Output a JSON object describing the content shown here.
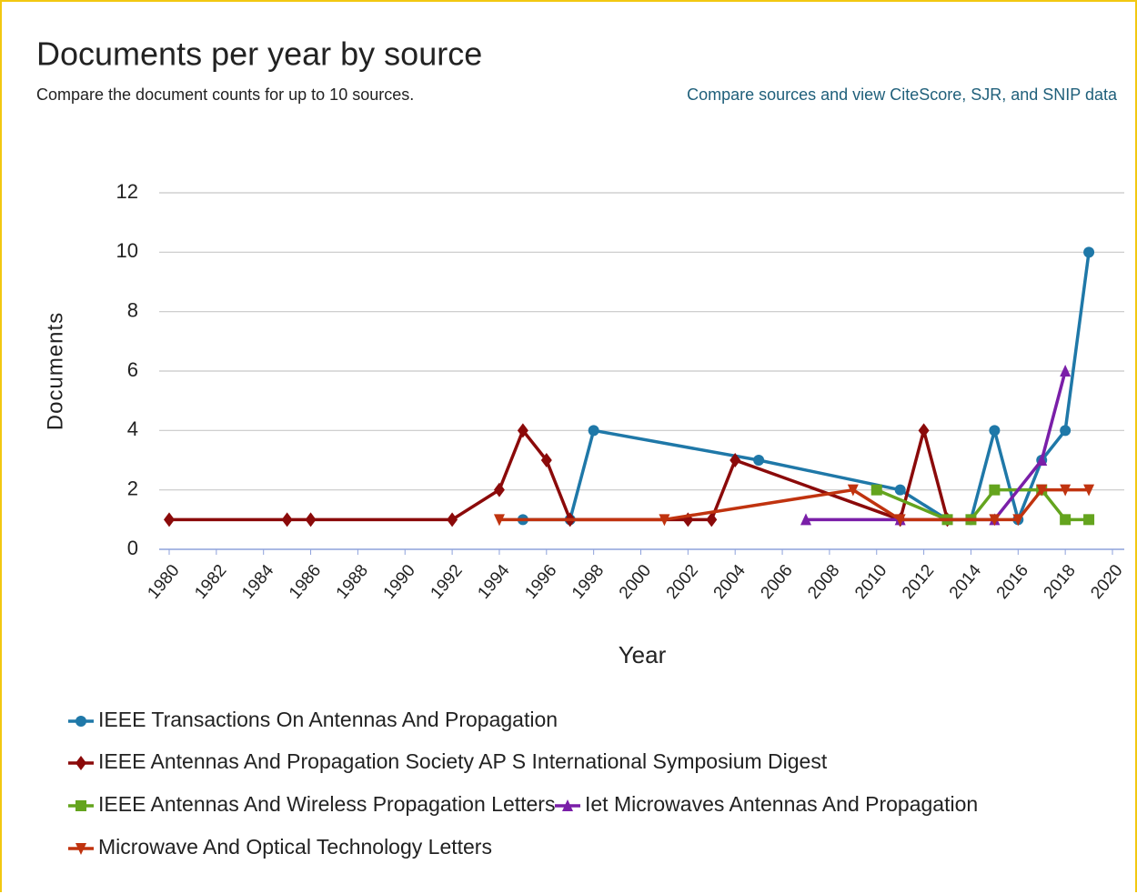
{
  "chart_data": {
    "type": "line",
    "title": "Documents per year by source",
    "subtitle": "Compare the document counts for up to 10 sources.",
    "link_text": "Compare sources and view CiteScore, SJR, and SNIP data",
    "xlabel": "Year",
    "ylabel": "Documents",
    "xlim": [
      1980,
      2020
    ],
    "xticks": [
      1980,
      1982,
      1984,
      1986,
      1988,
      1990,
      1992,
      1994,
      1996,
      1998,
      2000,
      2002,
      2004,
      2006,
      2008,
      2010,
      2012,
      2014,
      2016,
      2018,
      2020
    ],
    "ylim": [
      0,
      12
    ],
    "yticks": [
      0,
      2,
      4,
      6,
      8,
      10,
      12
    ],
    "grid": true,
    "series": [
      {
        "name": "IEEE Transactions On Antennas And Propagation",
        "color": "#1f78a8",
        "marker": "circle",
        "x": [
          1995,
          1997,
          1998,
          2005,
          2011,
          2013,
          2014,
          2015,
          2016,
          2017,
          2018,
          2019
        ],
        "values": [
          1,
          1,
          4,
          3,
          2,
          1,
          1,
          4,
          1,
          3,
          4,
          10
        ]
      },
      {
        "name": "IEEE Antennas And Propagation Society AP S International Symposium Digest",
        "color": "#8b0a0a",
        "marker": "diamond",
        "x": [
          1980,
          1985,
          1986,
          1992,
          1994,
          1995,
          1996,
          1997,
          2002,
          2003,
          2004,
          2011,
          2012,
          2013
        ],
        "values": [
          1,
          1,
          1,
          1,
          2,
          4,
          3,
          1,
          1,
          1,
          3,
          1,
          4,
          1
        ]
      },
      {
        "name": "IEEE Antennas And Wireless Propagation Letters",
        "color": "#64a41e",
        "marker": "square",
        "x": [
          2010,
          2013,
          2014,
          2015,
          2017,
          2018,
          2019
        ],
        "values": [
          2,
          1,
          1,
          2,
          2,
          1,
          1
        ]
      },
      {
        "name": "Iet Microwaves Antennas And Propagation",
        "color": "#7a1fa8",
        "marker": "triangle",
        "x": [
          2007,
          2011,
          2015,
          2017,
          2018
        ],
        "values": [
          1,
          1,
          1,
          3,
          6
        ]
      },
      {
        "name": "Microwave And Optical Technology Letters",
        "color": "#c0330f",
        "marker": "triangle-down",
        "x": [
          1994,
          2001,
          2009,
          2011,
          2015,
          2016,
          2017,
          2018,
          2019
        ],
        "values": [
          1,
          1,
          2,
          1,
          1,
          1,
          2,
          2,
          2
        ]
      }
    ]
  }
}
